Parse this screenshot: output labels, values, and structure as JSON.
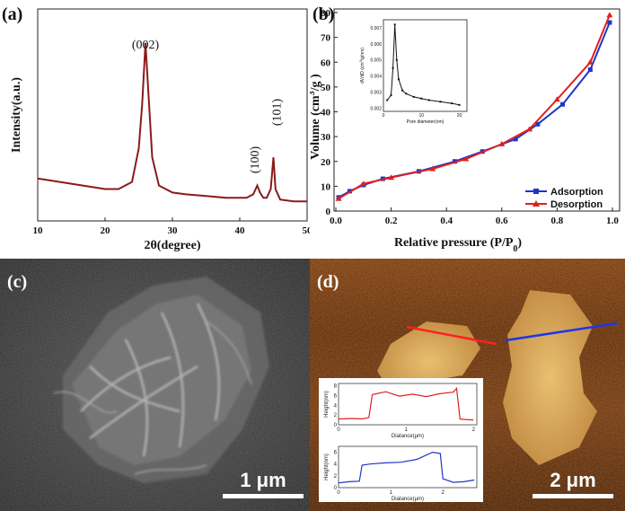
{
  "panels": {
    "a": "(a)",
    "b": "(b)",
    "c": "(c)",
    "d": "(d)"
  },
  "chart_data": [
    {
      "type": "line",
      "panel": "a",
      "xlabel": "2θ(degree)",
      "ylabel": "Intensity(a.u.)",
      "xlim": [
        10,
        50
      ],
      "xticks": [
        "10",
        "20",
        "30",
        "40",
        "50"
      ],
      "annotations": [
        {
          "text": "(002)",
          "x": 26.0
        },
        {
          "text": "(100)",
          "x": 42.8
        },
        {
          "text": "(101)",
          "x": 45.0
        }
      ],
      "series": [
        {
          "color": "#8b1a1a",
          "x": [
            10,
            15,
            20,
            22,
            24,
            25,
            25.5,
            26,
            26.5,
            27,
            28,
            30,
            32,
            35,
            38,
            40,
            41,
            42,
            42.6,
            43,
            43.5,
            44,
            44.6,
            45,
            45.3,
            46,
            48,
            50
          ],
          "y": [
            0.18,
            0.15,
            0.12,
            0.12,
            0.16,
            0.35,
            0.6,
            0.95,
            0.62,
            0.3,
            0.14,
            0.1,
            0.09,
            0.08,
            0.07,
            0.07,
            0.07,
            0.09,
            0.14,
            0.1,
            0.07,
            0.07,
            0.12,
            0.3,
            0.12,
            0.06,
            0.05,
            0.05
          ]
        }
      ]
    },
    {
      "type": "line",
      "panel": "b",
      "xlabel": "Relative pressure (P/P",
      "xlabel_sub": "0",
      "xlabel_end": ")",
      "ylabel": "Volume (cm",
      "ylabel_sup": "3",
      "ylabel_end": "/g )",
      "xlim": [
        0.0,
        1.0
      ],
      "ylim": [
        0,
        80
      ],
      "xticks": [
        "0.0",
        "0.2",
        "0.4",
        "0.6",
        "0.8",
        "1.0"
      ],
      "yticks": [
        "0",
        "10",
        "20",
        "30",
        "40",
        "50",
        "60",
        "70",
        "80"
      ],
      "legend": "bottom-right",
      "series": [
        {
          "name": "Adsorption",
          "color": "#1f35c8",
          "marker": "square",
          "x": [
            0.01,
            0.05,
            0.1,
            0.17,
            0.3,
            0.43,
            0.53,
            0.65,
            0.73,
            0.82,
            0.92,
            0.99
          ],
          "y": [
            5.5,
            8,
            10.5,
            13,
            16,
            20,
            24,
            29,
            35,
            43,
            57,
            76
          ]
        },
        {
          "name": "Desorption",
          "color": "#e02020",
          "marker": "triangle",
          "x": [
            0.01,
            0.1,
            0.2,
            0.35,
            0.47,
            0.6,
            0.7,
            0.8,
            0.92,
            0.99
          ],
          "y": [
            5,
            11,
            13.5,
            17,
            21,
            27,
            33,
            45,
            60,
            79
          ]
        }
      ],
      "inset": {
        "xlabel": "Pore diameter(nm)",
        "ylabel": "dV/dD (cm",
        "ylabel_sup": "3",
        "ylabel_end": "/g/nm)",
        "xticks": [
          "0",
          "10",
          "20"
        ],
        "yticks": [
          "0.002",
          "0.003",
          "0.004",
          "0.005",
          "0.006",
          "0.007"
        ],
        "series": [
          {
            "x": [
              1,
              2,
              2.5,
              3,
              3.5,
              4,
              5,
              6,
              8,
              10,
              12,
              15,
              18,
              20
            ],
            "y": [
              0.0025,
              0.0028,
              0.0045,
              0.0072,
              0.005,
              0.0038,
              0.0031,
              0.0029,
              0.0027,
              0.0026,
              0.0025,
              0.0024,
              0.0023,
              0.0022
            ]
          }
        ]
      }
    },
    {
      "type": "line",
      "panel": "d-inset-top",
      "xlabel": "Diatance(μm)",
      "ylabel": "Height(nm)",
      "xticks": [
        "0",
        "1",
        "2"
      ],
      "yticks": [
        "0",
        "2",
        "4",
        "6",
        "8"
      ],
      "series": [
        {
          "color": "#e02020",
          "x": [
            0,
            0.2,
            0.35,
            0.45,
            0.5,
            0.7,
            0.9,
            1.1,
            1.3,
            1.5,
            1.7,
            1.75,
            1.8,
            1.85,
            2.0
          ],
          "y": [
            1.2,
            1.3,
            1.2,
            1.5,
            6.2,
            6.8,
            5.9,
            6.3,
            5.8,
            6.4,
            6.7,
            7.5,
            1.2,
            1.1,
            1.0
          ]
        }
      ]
    },
    {
      "type": "line",
      "panel": "d-inset-bottom",
      "xlabel": "Diatance(μm)",
      "ylabel": "Height(nm)",
      "xticks": [
        "0",
        "1",
        "2"
      ],
      "yticks": [
        "0",
        "2",
        "4",
        "6"
      ],
      "series": [
        {
          "color": "#1f35c8",
          "x": [
            0,
            0.2,
            0.4,
            0.45,
            0.6,
            0.9,
            1.2,
            1.5,
            1.8,
            1.95,
            2.0,
            2.2,
            2.4,
            2.6
          ],
          "y": [
            0.8,
            1.0,
            1.1,
            3.8,
            4.0,
            4.2,
            4.3,
            4.8,
            6.0,
            5.8,
            1.5,
            0.9,
            1.0,
            1.3
          ]
        }
      ]
    }
  ],
  "scalebars": {
    "c": "1 μm",
    "d": "2 μm"
  }
}
